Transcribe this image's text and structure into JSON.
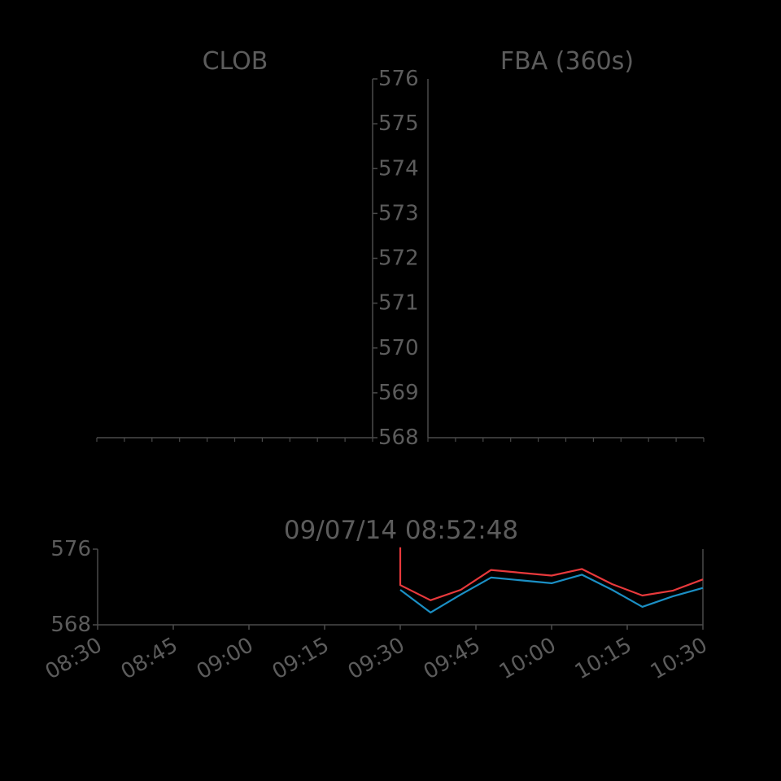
{
  "colors": {
    "background": "#000000",
    "text": "#5c5c5c",
    "axis": "#4a4a4a",
    "bid_series": "#e8393c",
    "ask_series": "#1b8fc4"
  },
  "timestamp": "09/07/14 08:52:48",
  "chart_data": [
    {
      "type": "line",
      "title": "CLOB",
      "ylim": [
        568,
        576
      ],
      "y_ticks": [
        568,
        569,
        570,
        571,
        572,
        573,
        574,
        575,
        576
      ],
      "y_tick_labels": [
        "568",
        "569",
        "570",
        "571",
        "572",
        "573",
        "574",
        "575",
        "576"
      ],
      "y_axis_side": "right",
      "grid": false,
      "series": []
    },
    {
      "type": "line",
      "title": "FBA (360s)",
      "ylim": [
        568,
        576
      ],
      "grid": false,
      "series": []
    },
    {
      "type": "line",
      "title": "",
      "x_ticks": [
        "08:30",
        "08:45",
        "09:00",
        "09:15",
        "09:30",
        "09:45",
        "10:00",
        "10:15",
        "10:30"
      ],
      "xlim": [
        "08:30",
        "10:30"
      ],
      "ylim": [
        568,
        576
      ],
      "y_ticks": [
        568,
        576
      ],
      "y_tick_labels": [
        "568",
        "576"
      ],
      "grid": false,
      "series": [
        {
          "color": "#e8393c",
          "points": [
            [
              "09:30",
              576.2
            ],
            [
              "09:30",
              572.2
            ],
            [
              "09:36",
              570.6
            ],
            [
              "09:42",
              571.7
            ],
            [
              "09:48",
              573.8
            ],
            [
              "09:54",
              573.5
            ],
            [
              "10:00",
              573.2
            ],
            [
              "10:06",
              573.9
            ],
            [
              "10:12",
              572.3
            ],
            [
              "10:18",
              571.1
            ],
            [
              "10:24",
              571.6
            ],
            [
              "10:30",
              572.8
            ]
          ]
        },
        {
          "color": "#1b8fc4",
          "points": [
            [
              "09:30",
              571.7
            ],
            [
              "09:36",
              569.3
            ],
            [
              "09:42",
              571.2
            ],
            [
              "09:48",
              573.0
            ],
            [
              "09:54",
              572.7
            ],
            [
              "10:00",
              572.4
            ],
            [
              "10:06",
              573.3
            ],
            [
              "10:12",
              571.7
            ],
            [
              "10:18",
              569.9
            ],
            [
              "10:24",
              571.0
            ],
            [
              "10:30",
              571.9
            ]
          ]
        }
      ]
    }
  ]
}
